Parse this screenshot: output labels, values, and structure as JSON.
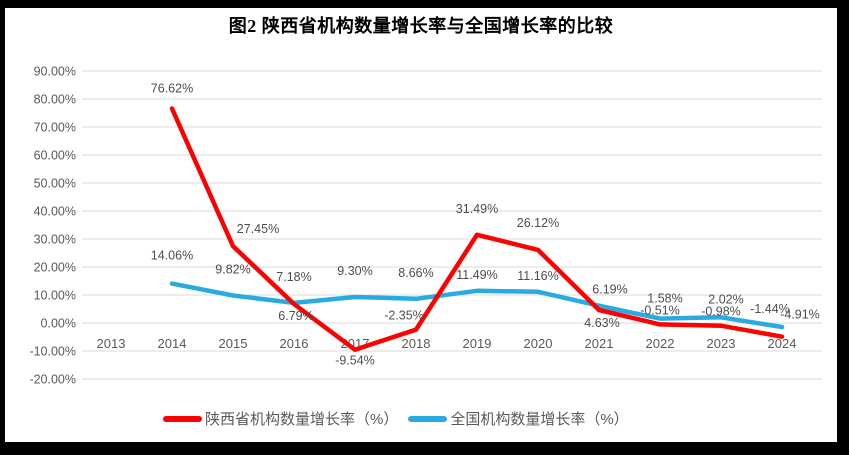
{
  "title": "图2 陕西省机构数量增长率与全国增长率的比较",
  "colors": {
    "shaanxi_line": "#FF0000",
    "national_line": "#29ABE2",
    "gridline": "#D9D9D9",
    "axis_text": "#595959",
    "data_label_text": "#4D4D4D",
    "title_text": "#000000",
    "frame": "#000000",
    "background": "#FFFFFF"
  },
  "chart_data": {
    "type": "line",
    "title": "图2 陕西省机构数量增长率与全国增长率的比较",
    "categories": [
      "2013",
      "2014",
      "2015",
      "2016",
      "2017",
      "2018",
      "2019",
      "2020",
      "2021",
      "2022",
      "2023",
      "2024"
    ],
    "y_axis": {
      "min": -20,
      "max": 90,
      "step": 10,
      "tick_labels": [
        "90.00%",
        "80.00%",
        "70.00%",
        "60.00%",
        "50.00%",
        "40.00%",
        "30.00%",
        "20.00%",
        "10.00%",
        "0.00%",
        "-10.00%",
        "-20.00%"
      ]
    },
    "grid": "horizontal",
    "legend_position": "bottom",
    "series": [
      {
        "name": "陕西省机构数量增长率（%）",
        "color_key": "shaanxi_line",
        "values": [
          null,
          76.62,
          27.45,
          6.79,
          -9.54,
          -2.35,
          31.49,
          26.12,
          4.63,
          -0.51,
          -0.98,
          -4.91
        ],
        "point_labels": [
          "",
          "76.62%",
          "27.45%",
          "6.79%",
          "-9.54%",
          "-2.35%",
          "31.49%",
          "26.12%",
          "4.63%",
          "-0.51%",
          "-0.98%",
          "-4.91%"
        ]
      },
      {
        "name": "全国机构数量增长率（%）",
        "color_key": "national_line",
        "values": [
          null,
          14.06,
          9.82,
          7.18,
          9.3,
          8.66,
          11.49,
          11.16,
          6.19,
          1.58,
          2.02,
          -1.44
        ],
        "point_labels": [
          "",
          "14.06%",
          "9.82%",
          "7.18%",
          "9.30%",
          "8.66%",
          "11.49%",
          "11.16%",
          "6.19%",
          "1.58%",
          "2.02%",
          "-1.44%"
        ]
      }
    ]
  }
}
